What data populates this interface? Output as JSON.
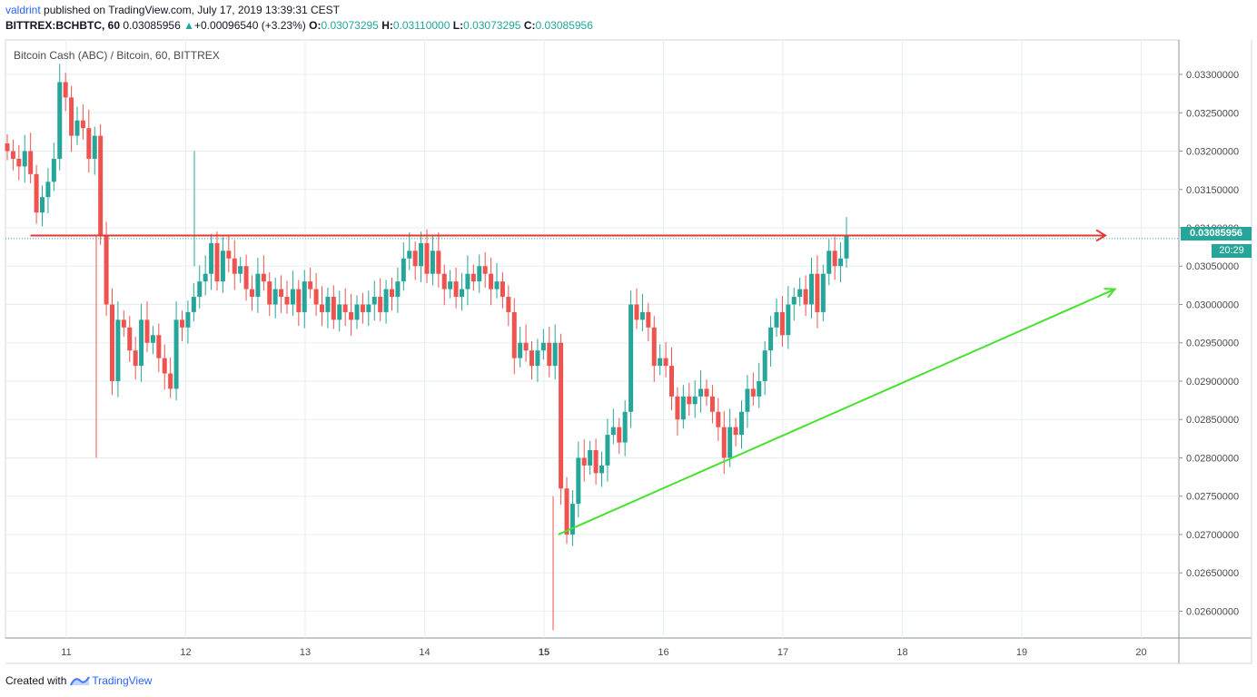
{
  "header": {
    "author": "valdrint",
    "published": " published on TradingView.com, July 17, 2019 13:39:31 CEST",
    "symbol": "BITTREX:BCHBTC, 60",
    "last": "0.03085956",
    "change_arrow": "▲",
    "change": "+0.00096540 (+3.23%)",
    "o_label": "O:",
    "o_value": "0.03073295",
    "h_label": "H:",
    "h_value": "0.03110000",
    "l_label": "L:",
    "l_value": "0.03073295",
    "c_label": "C:",
    "c_value": "0.03085956"
  },
  "footer": {
    "created_with": "Created with",
    "brand": "TradingView"
  },
  "price_axis": {
    "last_price_label": "0.03085956",
    "countdown_label": "20:29"
  },
  "colors": {
    "up": "#26a69a",
    "down": "#ef5350",
    "grid": "#e6eef4",
    "resistance": "#e53935",
    "support": "#46e22e",
    "last_price_line": "#26a69a"
  },
  "chart_data": {
    "type": "candlestick",
    "title": "Bitcoin Cash (ABC) / Bitcoin, 60, BITTREX",
    "x_ticks": [
      "11",
      "12",
      "13",
      "14",
      "15",
      "16",
      "17",
      "18",
      "19",
      "20"
    ],
    "y_ticks": [
      "0.02600000",
      "0.02650000",
      "0.02700000",
      "0.02750000",
      "0.02800000",
      "0.02850000",
      "0.02900000",
      "0.02950000",
      "0.03000000",
      "0.03050000",
      "0.03100000",
      "0.03150000",
      "0.03200000",
      "0.03250000",
      "0.03300000"
    ],
    "ylim": [
      0.02565,
      0.03345
    ],
    "xlim_days": [
      10.5,
      20.3
    ],
    "grid": true,
    "last_price": 0.03085956,
    "candles_close": [
      0.032,
      0.0319,
      0.0318,
      0.032,
      0.0317,
      0.0312,
      0.0314,
      0.0316,
      0.0319,
      0.0329,
      0.0327,
      0.0322,
      0.0324,
      0.0323,
      0.0319,
      0.0322,
      0.0309,
      0.03,
      0.029,
      0.0298,
      0.0297,
      0.0294,
      0.0292,
      0.0298,
      0.0295,
      0.0296,
      0.0293,
      0.0291,
      0.0289,
      0.0298,
      0.0297,
      0.0299,
      0.0301,
      0.0303,
      0.0304,
      0.0308,
      0.0303,
      0.0307,
      0.0306,
      0.0304,
      0.0305,
      0.0302,
      0.0301,
      0.0304,
      0.0303,
      0.03,
      0.0302,
      0.0301,
      0.03,
      0.0302,
      0.0299,
      0.0303,
      0.0302,
      0.03,
      0.0299,
      0.0301,
      0.0298,
      0.03,
      0.0299,
      0.0298,
      0.03,
      0.0299,
      0.03,
      0.0301,
      0.0299,
      0.0302,
      0.0301,
      0.0303,
      0.0306,
      0.0307,
      0.0305,
      0.0308,
      0.0304,
      0.0307,
      0.0304,
      0.0302,
      0.0303,
      0.0301,
      0.0302,
      0.0304,
      0.0303,
      0.0305,
      0.0304,
      0.0302,
      0.0303,
      0.0301,
      0.0299,
      0.0293,
      0.0295,
      0.0294,
      0.0292,
      0.0294,
      0.0295,
      0.0292,
      0.0295,
      0.0276,
      0.027,
      0.0274,
      0.028,
      0.0279,
      0.0281,
      0.0278,
      0.0279,
      0.0283,
      0.0284,
      0.0282,
      0.0286,
      0.03,
      0.0298,
      0.0299,
      0.0297,
      0.0292,
      0.0293,
      0.0292,
      0.0288,
      0.0285,
      0.0288,
      0.0287,
      0.0288,
      0.0289,
      0.0288,
      0.0286,
      0.0284,
      0.028,
      0.0284,
      0.0283,
      0.0286,
      0.0289,
      0.0288,
      0.029,
      0.0294,
      0.0297,
      0.0299,
      0.0296,
      0.03,
      0.0301,
      0.0302,
      0.03,
      0.0304,
      0.0299,
      0.0304,
      0.0307,
      0.0305,
      0.0306,
      0.0309
    ],
    "candles_open": [
      0.0321,
      0.032,
      0.0319,
      0.0318,
      0.032,
      0.0317,
      0.0312,
      0.0314,
      0.0316,
      0.0319,
      0.0329,
      0.0327,
      0.0322,
      0.0324,
      0.0323,
      0.0319,
      0.0322,
      0.0309,
      0.03,
      0.029,
      0.0298,
      0.0297,
      0.0294,
      0.0292,
      0.0298,
      0.0295,
      0.0296,
      0.0293,
      0.0291,
      0.0289,
      0.0298,
      0.0297,
      0.0299,
      0.0301,
      0.0303,
      0.0304,
      0.0308,
      0.0303,
      0.0307,
      0.0306,
      0.0304,
      0.0305,
      0.0302,
      0.0301,
      0.0304,
      0.0303,
      0.03,
      0.0302,
      0.0301,
      0.03,
      0.0302,
      0.0299,
      0.0303,
      0.0302,
      0.03,
      0.0299,
      0.0301,
      0.0298,
      0.03,
      0.0299,
      0.0298,
      0.03,
      0.0299,
      0.03,
      0.0301,
      0.0299,
      0.0302,
      0.0301,
      0.0303,
      0.0306,
      0.0307,
      0.0305,
      0.0308,
      0.0304,
      0.0307,
      0.0304,
      0.0302,
      0.0303,
      0.0301,
      0.0302,
      0.0304,
      0.0303,
      0.0305,
      0.0304,
      0.0302,
      0.0303,
      0.0301,
      0.0299,
      0.0293,
      0.0295,
      0.0294,
      0.0292,
      0.0294,
      0.0295,
      0.0292,
      0.0295,
      0.0276,
      0.027,
      0.0274,
      0.028,
      0.0279,
      0.0281,
      0.0278,
      0.0279,
      0.0283,
      0.0284,
      0.0282,
      0.0286,
      0.03,
      0.0298,
      0.0299,
      0.0297,
      0.0292,
      0.0293,
      0.0292,
      0.0288,
      0.0285,
      0.0288,
      0.0287,
      0.0288,
      0.0289,
      0.0288,
      0.0286,
      0.0284,
      0.028,
      0.0284,
      0.0283,
      0.0286,
      0.0289,
      0.0288,
      0.029,
      0.0294,
      0.0297,
      0.0299,
      0.0296,
      0.03,
      0.0301,
      0.0302,
      0.03,
      0.0304,
      0.0299,
      0.0304,
      0.0307,
      0.0305,
      0.0306
    ],
    "annotations": [
      {
        "type": "horizontal-arrow",
        "color": "red",
        "price": 0.0309,
        "from_day": 10.7,
        "to_day": 19.7
      },
      {
        "type": "trend-arrow",
        "color": "green",
        "from": [
          15.12,
          0.027
        ],
        "to": [
          19.78,
          0.0302
        ]
      }
    ]
  }
}
